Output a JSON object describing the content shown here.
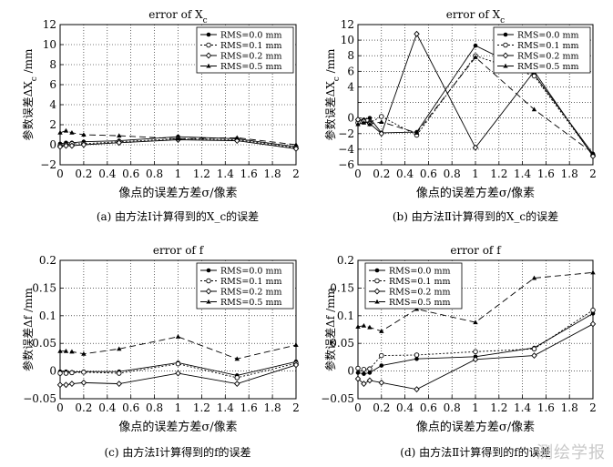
{
  "captions": [
    "(a) 由方法Ⅰ计算得到的X_c的误差",
    "(b) 由方法Ⅱ计算得到的X_c的误差",
    "(c) 由方法Ⅰ计算得到的f的误差",
    "(d) 由方法Ⅱ计算得到的f的误差"
  ],
  "watermark": "测绘学报",
  "chart_data": [
    {
      "type": "line",
      "title": "error of X_c",
      "xlabel": "像点的误差方差σ/像素",
      "ylabel": "参数误差ΔX_c /mm",
      "xlim": [
        0,
        2
      ],
      "ylim": [
        -2,
        12
      ],
      "xticks": [
        0,
        0.2,
        0.4,
        0.6,
        0.8,
        1,
        1.2,
        1.4,
        1.6,
        1.8,
        2
      ],
      "xtick_labels": [
        "0",
        "0.2",
        "0.4",
        "0.6",
        "0.8",
        "1",
        "1.2",
        "1.4",
        "1.6",
        "1.8",
        "2"
      ],
      "yticks": [
        -2,
        0,
        2,
        4,
        6,
        8,
        10,
        12
      ],
      "ytick_labels": [
        "−2",
        "0",
        "2",
        "4",
        "6",
        "8",
        "10",
        "12"
      ],
      "grid": true,
      "legend": "top-right",
      "x": [
        0,
        0.05,
        0.1,
        0.2,
        0.5,
        1,
        1.5,
        2
      ],
      "series": [
        {
          "name": "RMS=0.0 mm",
          "values": [
            0.1,
            0.2,
            0.2,
            0.3,
            0.4,
            0.8,
            0.6,
            -0.2
          ]
        },
        {
          "name": "RMS=0.1 mm",
          "values": [
            -0.1,
            0.0,
            0.1,
            0.1,
            0.3,
            0.6,
            0.5,
            -0.3
          ]
        },
        {
          "name": "RMS=0.2 mm",
          "values": [
            -0.2,
            -0.1,
            -0.1,
            0.0,
            0.2,
            0.5,
            0.4,
            -0.4
          ]
        },
        {
          "name": "RMS=0.5 mm",
          "values": [
            1.2,
            1.4,
            1.2,
            1.0,
            0.9,
            0.6,
            0.7,
            0.0
          ]
        }
      ]
    },
    {
      "type": "line",
      "title": "error of X_c",
      "xlabel": "像点的误差方差σ/像素",
      "ylabel": "参数误差ΔX_c /mm",
      "xlim": [
        0,
        2
      ],
      "ylim": [
        -6,
        12
      ],
      "xticks": [
        0,
        0.2,
        0.4,
        0.6,
        0.8,
        1,
        1.2,
        1.4,
        1.6,
        1.8,
        2
      ],
      "xtick_labels": [
        "0",
        "0.2",
        "0.4",
        "0.6",
        "0.8",
        "1",
        "1.2",
        "1.4",
        "1.6",
        "1.8",
        "2"
      ],
      "yticks": [
        -6,
        -4,
        -2,
        0,
        2,
        4,
        6,
        8,
        10,
        12
      ],
      "ytick_labels": [
        "−6",
        "−4",
        "−2",
        "0",
        "",
        "4",
        "6",
        "8",
        "10",
        "12"
      ],
      "grid": true,
      "legend": "top-right",
      "x": [
        0,
        0.05,
        0.1,
        0.2,
        0.5,
        1,
        1.5,
        2
      ],
      "series": [
        {
          "name": "RMS=0.0 mm",
          "values": [
            -0.3,
            -0.2,
            0.0,
            -1.9,
            -1.8,
            9.3,
            5.6,
            -4.6
          ]
        },
        {
          "name": "RMS=0.1 mm",
          "values": [
            -0.6,
            -0.5,
            -0.6,
            0.2,
            -2.2,
            8.0,
            5.4,
            -4.8
          ]
        },
        {
          "name": "RMS=0.2 mm",
          "values": [
            -0.2,
            -0.4,
            -0.7,
            -2.0,
            10.8,
            -3.8,
            6.0,
            -4.9
          ]
        },
        {
          "name": "RMS=0.5 mm",
          "values": [
            -0.8,
            -0.6,
            -0.8,
            -0.5,
            -1.9,
            7.8,
            1.1,
            -4.5
          ]
        }
      ]
    },
    {
      "type": "line",
      "title": "error of f",
      "xlabel": "像点的误差方差σ/像素",
      "ylabel": "参数误差Δf /mm",
      "xlim": [
        0,
        2
      ],
      "ylim": [
        -0.05,
        0.2
      ],
      "xticks": [
        0,
        0.2,
        0.4,
        0.6,
        0.8,
        1,
        1.2,
        1.4,
        1.6,
        1.8,
        2
      ],
      "xtick_labels": [
        "0",
        "0.2",
        "0.4",
        "0.6",
        "0.8",
        "1",
        "1.2",
        "1.4",
        "1.6",
        "1.8",
        "2"
      ],
      "yticks": [
        -0.05,
        0,
        0.05,
        0.1,
        0.15,
        0.2
      ],
      "ytick_labels": [
        "−0.05",
        "0",
        "0.05",
        "0.1",
        "0.15",
        "0.2"
      ],
      "grid": true,
      "legend": "top-right",
      "x": [
        0,
        0.05,
        0.1,
        0.2,
        0.5,
        1,
        1.5,
        2
      ],
      "series": [
        {
          "name": "RMS=0.0 mm",
          "values": [
            -0.001,
            -0.001,
            -0.002,
            -0.001,
            -0.001,
            0.015,
            -0.008,
            0.017
          ]
        },
        {
          "name": "RMS=0.1 mm",
          "values": [
            -0.004,
            -0.004,
            -0.003,
            -0.002,
            -0.004,
            0.013,
            -0.012,
            0.014
          ]
        },
        {
          "name": "RMS=0.2 mm",
          "values": [
            -0.025,
            -0.025,
            -0.023,
            -0.021,
            -0.023,
            -0.004,
            -0.023,
            0.011
          ]
        },
        {
          "name": "RMS=0.5 mm",
          "values": [
            0.036,
            0.036,
            0.035,
            0.031,
            0.04,
            0.062,
            0.022,
            0.047
          ]
        }
      ]
    },
    {
      "type": "line",
      "title": "error of f",
      "xlabel": "像点的误差方差σ/像素",
      "ylabel": "参数误差Δf /mm",
      "xlim": [
        0,
        2
      ],
      "ylim": [
        -0.05,
        0.2
      ],
      "xticks": [
        0,
        0.2,
        0.4,
        0.6,
        0.8,
        1,
        1.2,
        1.4,
        1.6,
        1.8,
        2
      ],
      "xtick_labels": [
        "0",
        "0.2",
        "0.4",
        "0.6",
        "0.8",
        "1",
        "1.2",
        "1.4",
        "1.6",
        "1.8",
        "2"
      ],
      "yticks": [
        -0.05,
        0,
        0.05,
        0.1,
        0.15,
        0.2
      ],
      "ytick_labels": [
        "−0.05",
        "0",
        "0.05",
        "0.1",
        "0.15",
        "0.2"
      ],
      "grid": true,
      "legend": "top-left",
      "x": [
        0,
        0.05,
        0.1,
        0.2,
        0.5,
        1,
        1.5,
        2
      ],
      "series": [
        {
          "name": "RMS=0.0 mm",
          "values": [
            -0.003,
            -0.005,
            -0.003,
            0.01,
            0.022,
            0.026,
            0.042,
            0.104
          ]
        },
        {
          "name": "RMS=0.1 mm",
          "values": [
            0.005,
            0.003,
            0.004,
            0.028,
            0.029,
            0.035,
            0.04,
            0.11
          ]
        },
        {
          "name": "RMS=0.2 mm",
          "values": [
            -0.014,
            -0.023,
            -0.017,
            -0.021,
            -0.033,
            0.021,
            0.028,
            0.085
          ]
        },
        {
          "name": "RMS=0.5 mm",
          "values": [
            0.08,
            0.082,
            0.079,
            0.072,
            0.112,
            0.088,
            0.168,
            0.178
          ]
        }
      ]
    }
  ]
}
